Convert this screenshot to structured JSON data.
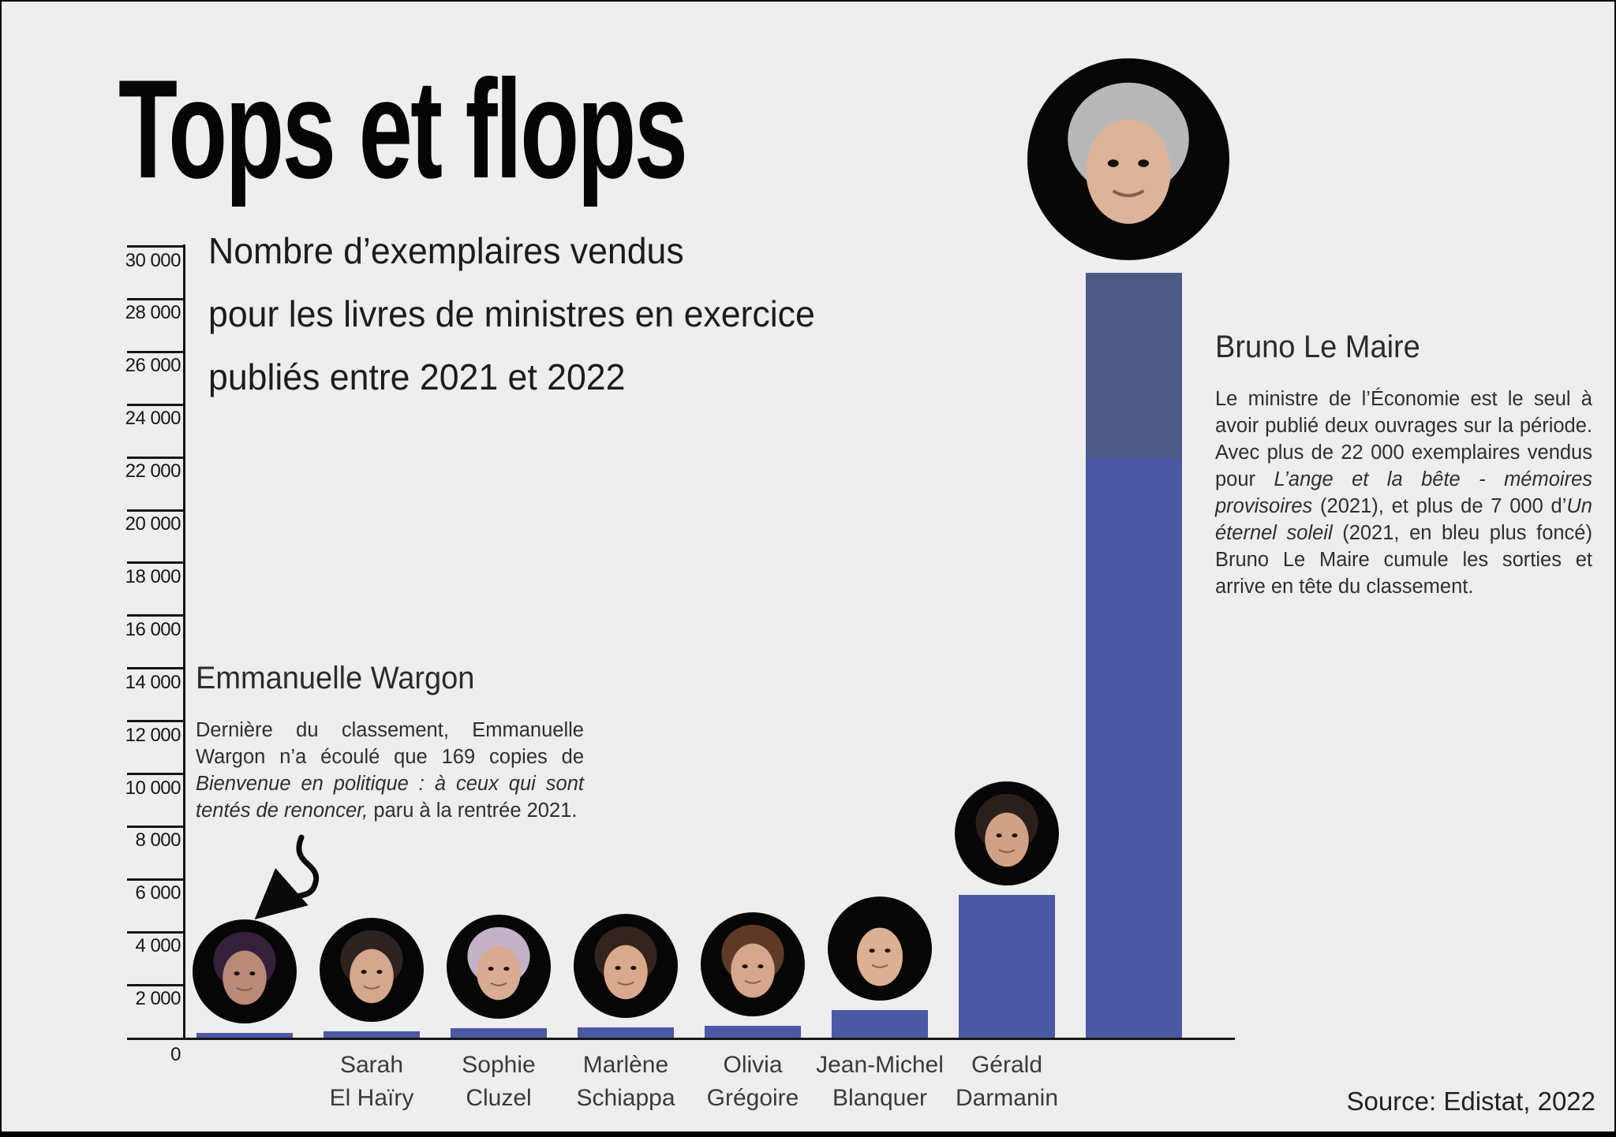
{
  "page": {
    "title": "Tops et flops",
    "subtitle_lines": [
      "Nombre d’exemplaires vendus",
      "pour les livres de ministres en exercice",
      "publiés entre 2021 et 2022"
    ],
    "source": "Source: Edistat, 2022",
    "background_color": "#eeeeee"
  },
  "colors": {
    "bar_light": "#4b58a4",
    "bar_dark": "#4d5a83",
    "axis": "#161616",
    "heading_text": "#2b2b2b",
    "body_text": "#2e2e2e"
  },
  "annotations": {
    "wargon": {
      "heading": "Emmanuelle Wargon",
      "body": [
        {
          "text": "Dernière du classement, Emmanuelle Wargon n’a écoulé que 169 copies de ",
          "italic": false
        },
        {
          "text": "Bienvenue en politique : à ceux qui sont tentés de renoncer,",
          "italic": true
        },
        {
          "text": " paru à la rentrée 2021.",
          "italic": false
        }
      ]
    },
    "lemaire": {
      "heading": "Bruno Le Maire",
      "body": [
        {
          "text": "Le ministre de l’Économie est le seul à avoir publié deux ouvrages sur la période. Avec plus de 22 000 exemplaires vendus pour ",
          "italic": false
        },
        {
          "text": "L’ange et la bête - mémoires provisoires",
          "italic": true
        },
        {
          "text": " (2021), et plus de 7 000 d’",
          "italic": false
        },
        {
          "text": "Un éternel soleil",
          "italic": true
        },
        {
          "text": " (2021, en bleu plus foncé) Bruno Le Maire cumule les sorties et arrive en tête du classement.",
          "italic": false
        }
      ]
    }
  },
  "chart_data": {
    "type": "bar",
    "title": "Nombre d’exemplaires vendus pour les livres de ministres en exercice publiés entre 2021 et 2022",
    "ylabel": "exemplaires vendus",
    "ylim": [
      0,
      30000
    ],
    "grid": false,
    "source": "Edistat, 2022",
    "y_ticks": [
      {
        "value": 30000,
        "label": "30 000"
      },
      {
        "value": 28000,
        "label": "28 000"
      },
      {
        "value": 26000,
        "label": "26 000"
      },
      {
        "value": 24000,
        "label": "24 000"
      },
      {
        "value": 22000,
        "label": "22 000"
      },
      {
        "value": 20000,
        "label": "20 000"
      },
      {
        "value": 18000,
        "label": "18 000"
      },
      {
        "value": 16000,
        "label": "16 000"
      },
      {
        "value": 14000,
        "label": "14 000"
      },
      {
        "value": 12000,
        "label": "12 000"
      },
      {
        "value": 10000,
        "label": "10 000"
      },
      {
        "value": 8000,
        "label": "8 000"
      },
      {
        "value": 6000,
        "label": "6 000"
      },
      {
        "value": 4000,
        "label": "4 000"
      },
      {
        "value": 2000,
        "label": "2 000"
      },
      {
        "value": 0,
        "label": "0"
      }
    ],
    "categories": [
      "Emmanuelle Wargon",
      "Sarah El Haïry",
      "Sophie Cluzel",
      "Marlène Schiappa",
      "Olivia Grégoire",
      "Jean-Michel Blanquer",
      "Gérald Darmanin",
      "Bruno Le Maire"
    ],
    "bars": [
      {
        "name": "Emmanuelle Wargon",
        "axis_label_lines": [],
        "value": 169,
        "segments": [
          {
            "value": 169,
            "shade": "light"
          }
        ],
        "photo": {
          "icon": "wargon-photo",
          "hair": "#35203a",
          "skin": "#b98a78",
          "bald": false,
          "big": false
        }
      },
      {
        "name": "Sarah El Haïry",
        "axis_label_lines": [
          "Sarah",
          "El Haïry"
        ],
        "value": 250,
        "segments": [
          {
            "value": 250,
            "shade": "light"
          }
        ],
        "photo": {
          "icon": "el-hairy-photo",
          "hair": "#2c2320",
          "skin": "#d3a88c",
          "bald": false,
          "big": false
        }
      },
      {
        "name": "Sophie Cluzel",
        "axis_label_lines": [
          "Sophie",
          "Cluzel"
        ],
        "value": 350,
        "segments": [
          {
            "value": 350,
            "shade": "light"
          }
        ],
        "photo": {
          "icon": "cluzel-photo",
          "hair": "#c4b2c9",
          "skin": "#d9ab92",
          "bald": false,
          "big": false
        }
      },
      {
        "name": "Marlène Schiappa",
        "axis_label_lines": [
          "Marlène",
          "Schiappa"
        ],
        "value": 400,
        "segments": [
          {
            "value": 400,
            "shade": "light"
          }
        ],
        "photo": {
          "icon": "schiappa-photo",
          "hair": "#33231c",
          "skin": "#d8a98c",
          "bald": false,
          "big": false
        }
      },
      {
        "name": "Olivia Grégoire",
        "axis_label_lines": [
          "Olivia",
          "Grégoire"
        ],
        "value": 450,
        "segments": [
          {
            "value": 450,
            "shade": "light"
          }
        ],
        "photo": {
          "icon": "gregoire-photo",
          "hair": "#5d3a28",
          "skin": "#d6a78b",
          "bald": false,
          "big": false
        }
      },
      {
        "name": "Jean-Michel Blanquer",
        "axis_label_lines": [
          "Jean-Michel",
          "Blanquer"
        ],
        "value": 1050,
        "segments": [
          {
            "value": 1050,
            "shade": "light"
          }
        ],
        "photo": {
          "icon": "blanquer-photo",
          "hair": "#d9b295",
          "skin": "#dcb092",
          "bald": true,
          "big": false
        }
      },
      {
        "name": "Gérald Darmanin",
        "axis_label_lines": [
          "Gérald",
          "Darmanin"
        ],
        "value": 5400,
        "segments": [
          {
            "value": 5400,
            "shade": "light"
          }
        ],
        "photo": {
          "icon": "darmanin-photo",
          "hair": "#2a201b",
          "skin": "#d0a184",
          "bald": false,
          "big": false
        }
      },
      {
        "name": "Bruno Le Maire",
        "axis_label_lines": [],
        "value": 29000,
        "segments": [
          {
            "value": 22000,
            "shade": "light",
            "book": "L’ange et la bête - mémoires provisoires (2021)"
          },
          {
            "value": 7000,
            "shade": "dark",
            "book": "Un éternel soleil (2021)"
          }
        ],
        "photo": {
          "icon": "le-maire-photo",
          "hair": "#b8b8b8",
          "skin": "#dcb49a",
          "bald": false,
          "big": true
        }
      }
    ]
  }
}
